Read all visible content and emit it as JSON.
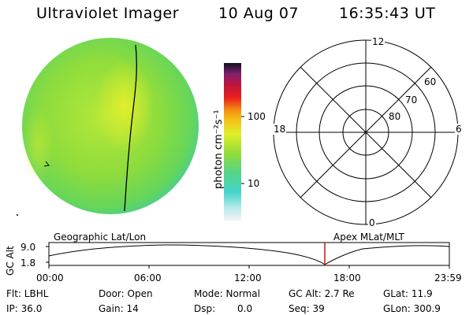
{
  "header": {
    "title": "Ultraviolet Imager",
    "date": "10 Aug 07",
    "time": "16:35:43 UT"
  },
  "colorbar": {
    "unit_label": "photon cm⁻²s⁻¹",
    "ticks": [
      "100",
      "10"
    ]
  },
  "polar_plot": {
    "mlt_labels": {
      "top": "12",
      "left": "18",
      "right": "6",
      "bottom": "0"
    },
    "lat_labels": [
      "60",
      "70",
      "80"
    ]
  },
  "orbit_panel": {
    "left_title": "Geographic Lat/Lon",
    "right_title": "Apex MLat/MLT",
    "axis_label": "GC Alt",
    "y_ticks": [
      "9.0",
      "1.8"
    ],
    "x_ticks": [
      "00:00",
      "06:00",
      "12:00",
      "18:00",
      "23:59"
    ]
  },
  "info": {
    "row1": {
      "flt": "Flt: LBHL",
      "door": "Door: Open",
      "mode": "Mode: Normal",
      "gcalt": "GC Alt: 2.7 Re",
      "glat": "GLat: 11.9"
    },
    "row2": {
      "ip": "IP: 36.0",
      "gain": "Gain: 14",
      "dsp_label": "Dsp:",
      "dsp_value": "0.0",
      "seq": "Seq: 39",
      "glon": "GLon: 300.9"
    }
  },
  "colors": {
    "disk_main": "#8edc3c",
    "disk_bright": "#d8ee2c",
    "disk_edge": "#54d48a",
    "current_time_marker": "#cc0000"
  }
}
